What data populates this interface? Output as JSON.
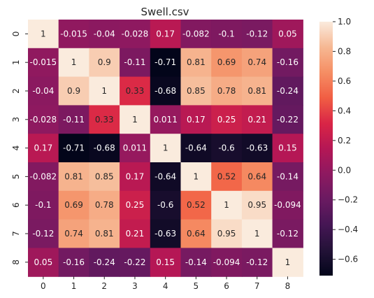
{
  "chart_data": {
    "type": "heatmap",
    "title": "Swell.csv",
    "xlabel": "",
    "ylabel": "",
    "x_categories": [
      "0",
      "1",
      "2",
      "3",
      "4",
      "5",
      "6",
      "7",
      "8"
    ],
    "y_categories": [
      "0",
      "1",
      "2",
      "3",
      "4",
      "5",
      "6",
      "7",
      "8"
    ],
    "values": [
      [
        1,
        -0.015,
        -0.04,
        -0.028,
        0.17,
        -0.082,
        -0.1,
        -0.12,
        0.05
      ],
      [
        -0.015,
        1,
        0.9,
        -0.11,
        -0.71,
        0.81,
        0.69,
        0.74,
        -0.16
      ],
      [
        -0.04,
        0.9,
        1,
        0.33,
        -0.68,
        0.85,
        0.78,
        0.81,
        -0.24
      ],
      [
        -0.028,
        -0.11,
        0.33,
        1,
        0.011,
        0.17,
        0.25,
        0.21,
        -0.22
      ],
      [
        0.17,
        -0.71,
        -0.68,
        0.011,
        1,
        -0.64,
        -0.6,
        -0.63,
        0.15
      ],
      [
        -0.082,
        0.81,
        0.85,
        0.17,
        -0.64,
        1,
        0.52,
        0.64,
        -0.14
      ],
      [
        -0.1,
        0.69,
        0.78,
        0.25,
        -0.6,
        0.52,
        1,
        0.95,
        -0.094
      ],
      [
        -0.12,
        0.74,
        0.81,
        0.21,
        -0.63,
        0.64,
        0.95,
        1,
        -0.12
      ],
      [
        0.05,
        -0.16,
        -0.24,
        -0.22,
        0.15,
        -0.14,
        -0.094,
        -0.12,
        1
      ]
    ],
    "value_labels": [
      [
        "1",
        "-0.015",
        "-0.04",
        "-0.028",
        "0.17",
        "-0.082",
        "-0.1",
        "-0.12",
        "0.05"
      ],
      [
        "-0.015",
        "1",
        "0.9",
        "-0.11",
        "-0.71",
        "0.81",
        "0.69",
        "0.74",
        "-0.16"
      ],
      [
        "-0.04",
        "0.9",
        "1",
        "0.33",
        "-0.68",
        "0.85",
        "0.78",
        "0.81",
        "-0.24"
      ],
      [
        "-0.028",
        "-0.11",
        "0.33",
        "1",
        "0.011",
        "0.17",
        "0.25",
        "0.21",
        "-0.22"
      ],
      [
        "0.17",
        "-0.71",
        "-0.68",
        "0.011",
        "1",
        "-0.64",
        "-0.6",
        "-0.63",
        "0.15"
      ],
      [
        "-0.082",
        "0.81",
        "0.85",
        "0.17",
        "-0.64",
        "1",
        "0.52",
        "0.64",
        "-0.14"
      ],
      [
        "-0.1",
        "0.69",
        "0.78",
        "0.25",
        "-0.6",
        "0.52",
        "1",
        "0.95",
        "-0.094"
      ],
      [
        "-0.12",
        "0.74",
        "0.81",
        "0.21",
        "-0.63",
        "0.64",
        "0.95",
        "1",
        "-0.12"
      ],
      [
        "0.05",
        "-0.16",
        "-0.24",
        "-0.22",
        "0.15",
        "-0.14",
        "-0.094",
        "-0.12",
        "1"
      ]
    ],
    "colorbar": {
      "vmin": -0.71,
      "vmax": 1,
      "ticks": [
        1.0,
        0.8,
        0.6,
        0.4,
        0.2,
        0.0,
        -0.2,
        -0.4,
        -0.6
      ],
      "tick_labels": [
        "1.0",
        "0.8",
        "0.6",
        "0.4",
        "0.2",
        "0.0",
        "−0.2",
        "−0.4",
        "−0.6"
      ]
    },
    "colormap": "rocket",
    "grid": false,
    "legend": "colorbar-right"
  }
}
